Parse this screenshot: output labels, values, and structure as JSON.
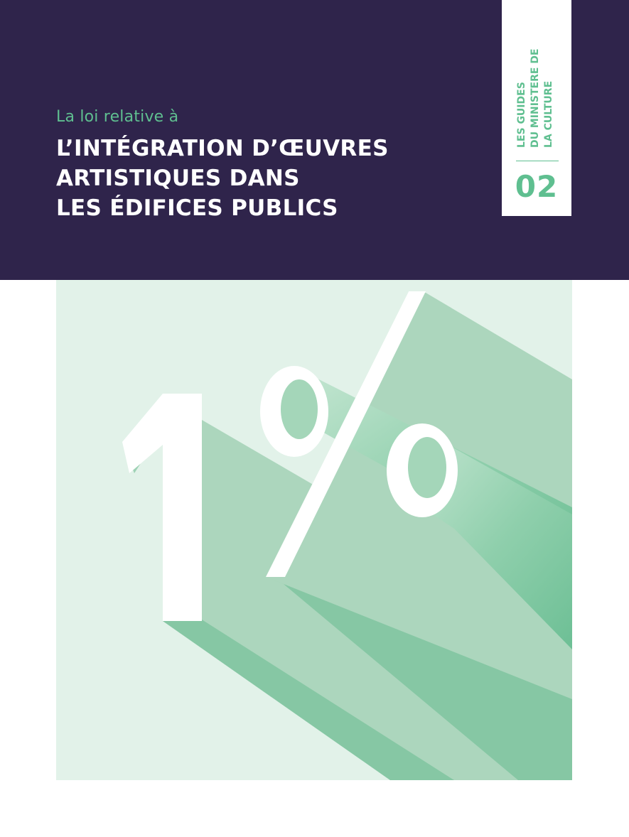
{
  "cover": {
    "subtitle": "La loi relative à",
    "title_lines": [
      "L’INTÉGRATION D’ŒUVRES",
      "ARTISTIQUES DANS",
      "LES ÉDIFICES PUBLICS"
    ]
  },
  "series_tab": {
    "lines": [
      "LES GUIDES",
      "DU MINISTERE DE",
      "LA CULTURE"
    ],
    "number": "02"
  },
  "illustration": {
    "text": "1%"
  },
  "colors": {
    "header_bg": "#2f244b",
    "accent_green": "#5fbf90",
    "art_bg": "#e2f2e9",
    "extrusion_light": "#acd6bd",
    "extrusion_dark": "#86c7a4",
    "glyph_face": "#ffffff"
  }
}
